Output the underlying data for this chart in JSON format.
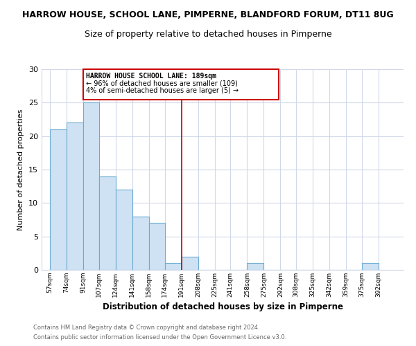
{
  "title1": "HARROW HOUSE, SCHOOL LANE, PIMPERNE, BLANDFORD FORUM, DT11 8UG",
  "title2": "Size of property relative to detached houses in Pimperne",
  "xlabel": "Distribution of detached houses by size in Pimperne",
  "ylabel": "Number of detached properties",
  "bar_edges": [
    57,
    74,
    91,
    107,
    124,
    141,
    158,
    174,
    191,
    208,
    225,
    241,
    258,
    275,
    292,
    308,
    325,
    342,
    359,
    375,
    392
  ],
  "bar_heights": [
    21,
    22,
    25,
    14,
    12,
    8,
    7,
    1,
    2,
    0,
    0,
    0,
    1,
    0,
    0,
    0,
    0,
    0,
    0,
    1
  ],
  "tick_labels": [
    "57sqm",
    "74sqm",
    "91sqm",
    "107sqm",
    "124sqm",
    "141sqm",
    "158sqm",
    "174sqm",
    "191sqm",
    "208sqm",
    "225sqm",
    "241sqm",
    "258sqm",
    "275sqm",
    "292sqm",
    "308sqm",
    "325sqm",
    "342sqm",
    "359sqm",
    "375sqm",
    "392sqm"
  ],
  "bar_color": "#cfe2f3",
  "bar_edgecolor": "#6aabd2",
  "vline_x": 191,
  "vline_color": "#cc0000",
  "annotation_line1": "HARROW HOUSE SCHOOL LANE: 189sqm",
  "annotation_line2": "← 96% of detached houses are smaller (109)",
  "annotation_line3": "4% of semi-detached houses are larger (5) →",
  "annotation_box_color": "#ffffff",
  "annotation_box_edgecolor": "#cc0000",
  "ylim": [
    0,
    30
  ],
  "yticks": [
    0,
    5,
    10,
    15,
    20,
    25,
    30
  ],
  "footer1": "Contains HM Land Registry data © Crown copyright and database right 2024.",
  "footer2": "Contains public sector information licensed under the Open Government Licence v3.0.",
  "background_color": "#ffffff",
  "grid_color": "#d0d8e8",
  "title1_fontsize": 9,
  "title2_fontsize": 9
}
